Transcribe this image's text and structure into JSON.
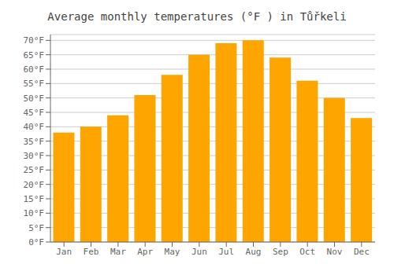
{
  "chart_data": {
    "type": "bar",
    "title": "Average monthly temperatures (°F ) in Tůřkeli",
    "categories": [
      "Jan",
      "Feb",
      "Mar",
      "Apr",
      "May",
      "Jun",
      "Jul",
      "Aug",
      "Sep",
      "Oct",
      "Nov",
      "Dec"
    ],
    "values": [
      38,
      40,
      44,
      51,
      58,
      65,
      69,
      70,
      64,
      56,
      50,
      43
    ],
    "color": "#FFA500",
    "ylim": [
      0,
      72
    ],
    "yticks": [
      {
        "value": 0,
        "label": "0°F"
      },
      {
        "value": 5,
        "label": "5°F"
      },
      {
        "value": 10,
        "label": "10°F"
      },
      {
        "value": 15,
        "label": "15°F"
      },
      {
        "value": 20,
        "label": "20°F"
      },
      {
        "value": 25,
        "label": "25°F"
      },
      {
        "value": 30,
        "label": "30°F"
      },
      {
        "value": 35,
        "label": "35°F"
      },
      {
        "value": 40,
        "label": "40°F"
      },
      {
        "value": 45,
        "label": "45°F"
      },
      {
        "value": 50,
        "label": "50°F"
      },
      {
        "value": 55,
        "label": "55°F"
      },
      {
        "value": 60,
        "label": "60°F"
      },
      {
        "value": 65,
        "label": "65°F"
      },
      {
        "value": 70,
        "label": "70°F"
      }
    ],
    "grid": true
  }
}
